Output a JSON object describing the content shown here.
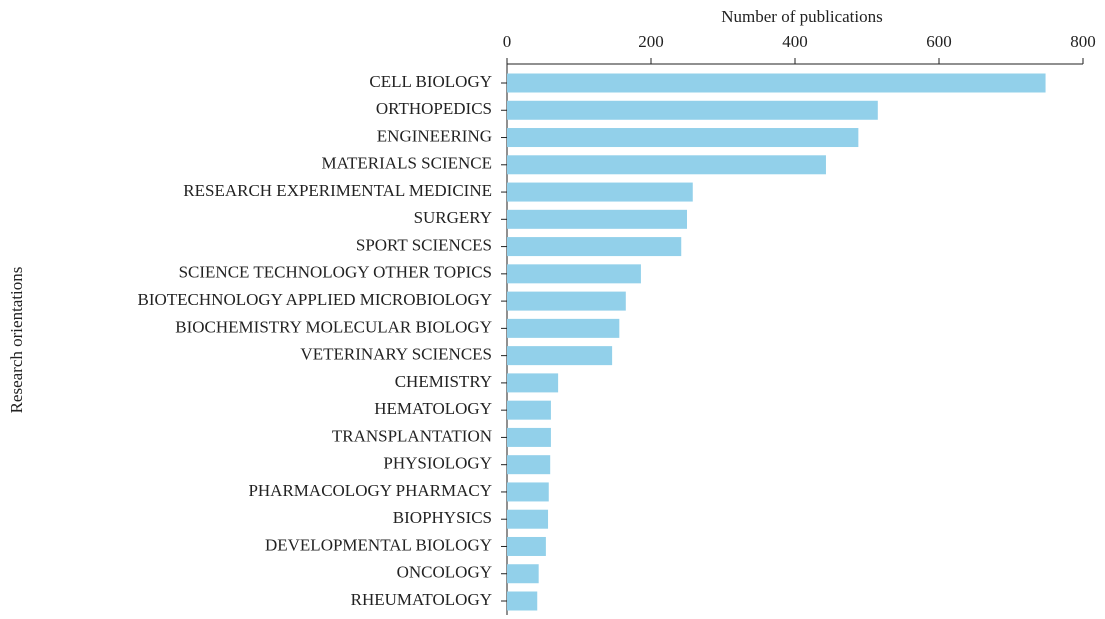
{
  "chart_data": {
    "type": "bar",
    "orientation": "horizontal",
    "x_label": "Number of publications",
    "y_label": "Research orientations",
    "categories": [
      "CELL BIOLOGY",
      "ORTHOPEDICS",
      "ENGINEERING",
      "MATERIALS SCIENCE",
      "RESEARCH EXPERIMENTAL MEDICINE",
      "SURGERY",
      "SPORT SCIENCES",
      "SCIENCE TECHNOLOGY OTHER TOPICS",
      "BIOTECHNOLOGY APPLIED MICROBIOLOGY",
      "BIOCHEMISTRY MOLECULAR BIOLOGY",
      "VETERINARY SCIENCES",
      "CHEMISTRY",
      "HEMATOLOGY",
      "TRANSPLANTATION",
      "PHYSIOLOGY",
      "PHARMACOLOGY PHARMACY",
      "BIOPHYSICS",
      "DEVELOPMENTAL BIOLOGY",
      "ONCOLOGY",
      "RHEUMATOLOGY"
    ],
    "values": [
      748,
      515,
      488,
      443,
      258,
      250,
      242,
      186,
      165,
      156,
      146,
      71,
      61,
      61,
      60,
      58,
      57,
      54,
      44,
      42
    ],
    "color": "#92d0ea",
    "xlim": [
      0,
      800
    ],
    "xticks": [
      0,
      200,
      400,
      600,
      800
    ]
  }
}
